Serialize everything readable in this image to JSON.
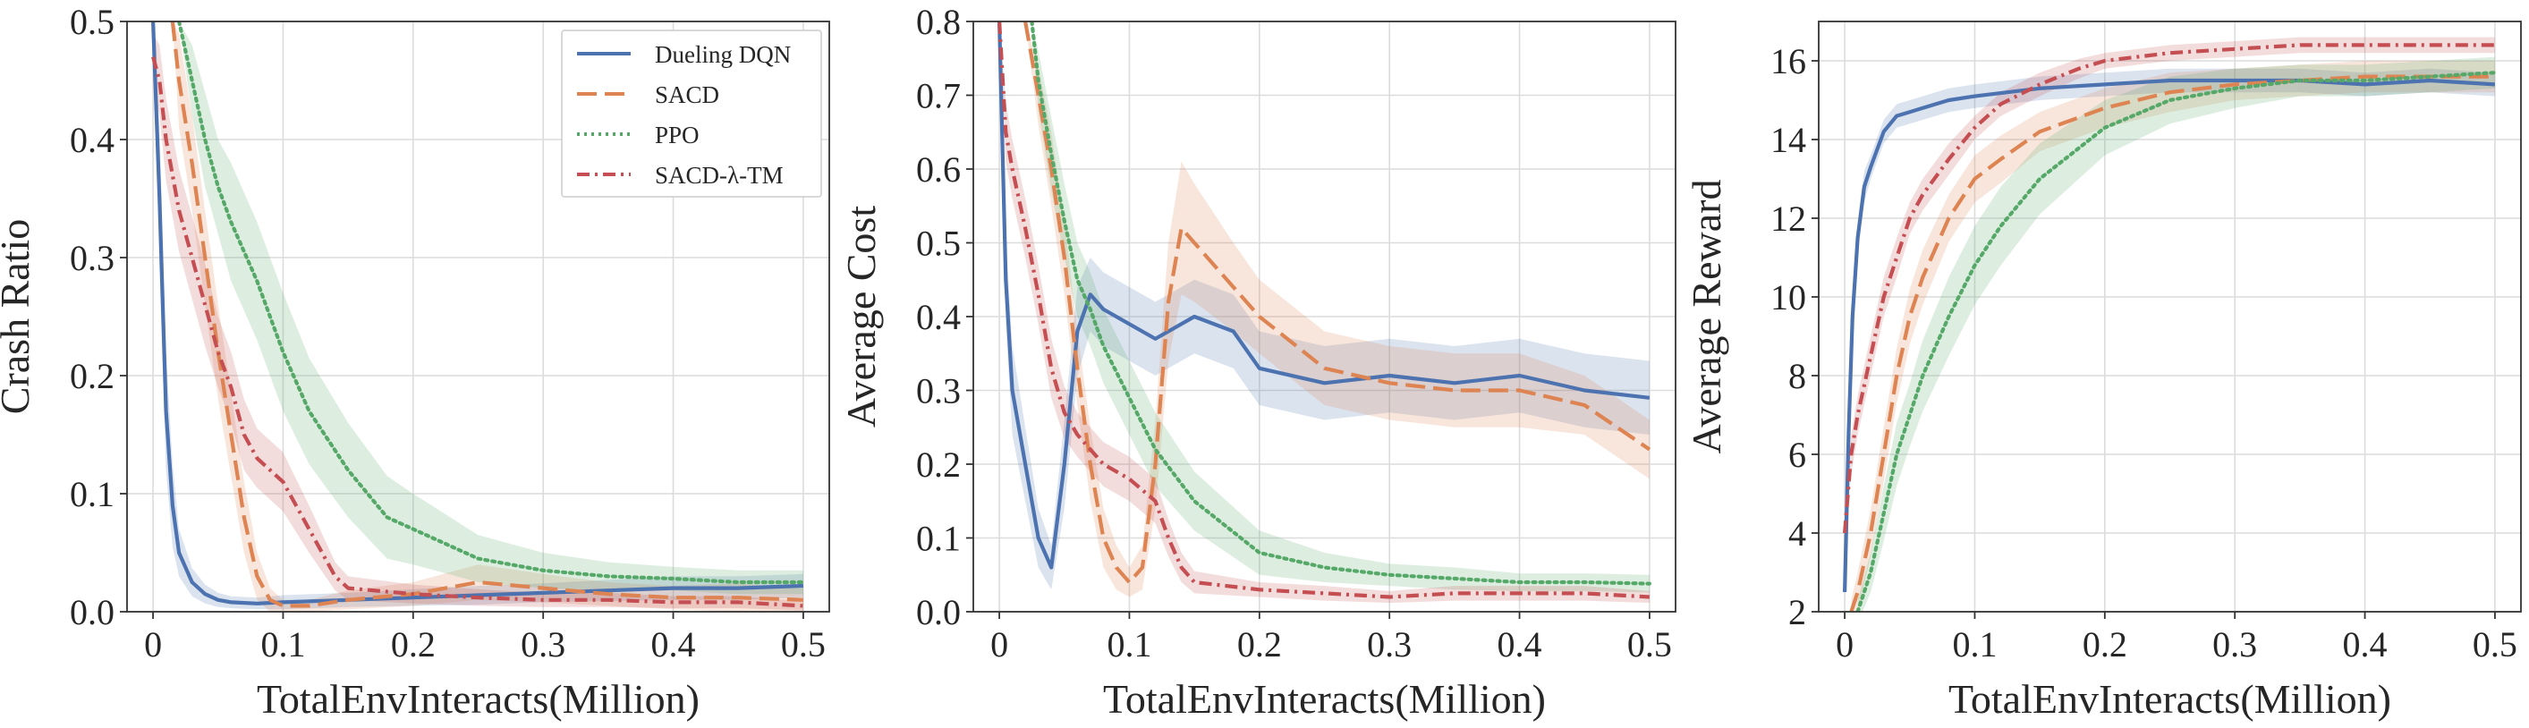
{
  "colors": {
    "dueling_dqn": "#4c72b0",
    "sacd": "#dd8452",
    "ppo": "#55a868",
    "sacd_tm": "#c44e52"
  },
  "chart_data": [
    {
      "type": "line",
      "title": "",
      "xlabel": "TotalEnvInteracts(Million)",
      "ylabel": "Crash Ratio",
      "xlim": [
        -0.02,
        0.52
      ],
      "ylim": [
        0.0,
        0.5
      ],
      "xticks": [
        0,
        0.1,
        0.2,
        0.3,
        0.4,
        0.5
      ],
      "xtick_labels": [
        "0",
        "0.1",
        "0.2",
        "0.3",
        "0.4",
        "0.5"
      ],
      "yticks": [
        0.0,
        0.1,
        0.2,
        0.3,
        0.4,
        0.5
      ],
      "ytick_labels": [
        "0.0",
        "0.1",
        "0.2",
        "0.3",
        "0.4",
        "0.5"
      ],
      "grid": true,
      "legend": "top-right",
      "series": [
        {
          "name": "Dueling DQN",
          "style": "solid",
          "color_key": "dueling_dqn",
          "x": [
            0,
            0.005,
            0.01,
            0.015,
            0.02,
            0.03,
            0.04,
            0.05,
            0.06,
            0.08,
            0.1,
            0.15,
            0.2,
            0.25,
            0.3,
            0.35,
            0.4,
            0.45,
            0.5
          ],
          "y": [
            0.5,
            0.35,
            0.17,
            0.09,
            0.05,
            0.025,
            0.015,
            0.01,
            0.008,
            0.007,
            0.008,
            0.01,
            0.012,
            0.014,
            0.016,
            0.018,
            0.02,
            0.02,
            0.022
          ],
          "band": [
            0.0,
            0.06,
            0.05,
            0.035,
            0.02,
            0.012,
            0.008,
            0.006,
            0.005,
            0.005,
            0.006,
            0.006,
            0.007,
            0.008,
            0.008,
            0.009,
            0.01,
            0.01,
            0.01
          ]
        },
        {
          "name": "SACD",
          "style": "dashed",
          "color_key": "sacd",
          "x": [
            0.015,
            0.02,
            0.03,
            0.04,
            0.05,
            0.06,
            0.07,
            0.08,
            0.09,
            0.1,
            0.12,
            0.15,
            0.2,
            0.25,
            0.3,
            0.35,
            0.4,
            0.45,
            0.5
          ],
          "y": [
            0.5,
            0.45,
            0.38,
            0.3,
            0.22,
            0.15,
            0.08,
            0.03,
            0.01,
            0.005,
            0.005,
            0.01,
            0.015,
            0.025,
            0.02,
            0.015,
            0.012,
            0.012,
            0.01
          ],
          "band": [
            0.0,
            0.04,
            0.04,
            0.04,
            0.04,
            0.035,
            0.03,
            0.02,
            0.01,
            0.005,
            0.005,
            0.008,
            0.01,
            0.015,
            0.012,
            0.01,
            0.01,
            0.012,
            0.01
          ]
        },
        {
          "name": "PPO",
          "style": "dotted",
          "color_key": "ppo",
          "x": [
            0.02,
            0.03,
            0.04,
            0.05,
            0.06,
            0.08,
            0.1,
            0.12,
            0.15,
            0.18,
            0.2,
            0.25,
            0.3,
            0.35,
            0.4,
            0.45,
            0.5
          ],
          "y": [
            0.5,
            0.45,
            0.4,
            0.36,
            0.33,
            0.28,
            0.22,
            0.17,
            0.12,
            0.08,
            0.07,
            0.045,
            0.035,
            0.03,
            0.028,
            0.025,
            0.025
          ],
          "band": [
            0.0,
            0.03,
            0.04,
            0.04,
            0.05,
            0.05,
            0.05,
            0.045,
            0.04,
            0.035,
            0.03,
            0.02,
            0.015,
            0.012,
            0.01,
            0.01,
            0.01
          ]
        },
        {
          "name": "SACD-λ-TM",
          "style": "dashdot",
          "color_key": "sacd_tm",
          "x": [
            0,
            0.005,
            0.01,
            0.02,
            0.03,
            0.04,
            0.05,
            0.06,
            0.07,
            0.08,
            0.1,
            0.12,
            0.14,
            0.15,
            0.2,
            0.25,
            0.3,
            0.35,
            0.4,
            0.45,
            0.5
          ],
          "y": [
            0.47,
            0.45,
            0.4,
            0.34,
            0.3,
            0.26,
            0.22,
            0.19,
            0.15,
            0.13,
            0.11,
            0.07,
            0.03,
            0.02,
            0.015,
            0.012,
            0.01,
            0.01,
            0.008,
            0.008,
            0.005
          ],
          "band": [
            0.02,
            0.03,
            0.035,
            0.035,
            0.035,
            0.035,
            0.03,
            0.03,
            0.03,
            0.025,
            0.025,
            0.02,
            0.012,
            0.01,
            0.008,
            0.007,
            0.006,
            0.006,
            0.005,
            0.005,
            0.004
          ]
        }
      ]
    },
    {
      "type": "line",
      "title": "",
      "xlabel": "TotalEnvInteracts(Million)",
      "ylabel": "Average Cost",
      "xlim": [
        -0.02,
        0.52
      ],
      "ylim": [
        0.0,
        0.8
      ],
      "xticks": [
        0,
        0.1,
        0.2,
        0.3,
        0.4,
        0.5
      ],
      "xtick_labels": [
        "0",
        "0.1",
        "0.2",
        "0.3",
        "0.4",
        "0.5"
      ],
      "yticks": [
        0.0,
        0.1,
        0.2,
        0.3,
        0.4,
        0.5,
        0.6,
        0.7,
        0.8
      ],
      "ytick_labels": [
        "0.0",
        "0.1",
        "0.2",
        "0.3",
        "0.4",
        "0.5",
        "0.6",
        "0.7",
        "0.8"
      ],
      "grid": true,
      "legend": "none",
      "series": [
        {
          "name": "Dueling DQN",
          "style": "solid",
          "color_key": "dueling_dqn",
          "x": [
            0,
            0.005,
            0.01,
            0.02,
            0.03,
            0.04,
            0.05,
            0.06,
            0.07,
            0.08,
            0.1,
            0.12,
            0.15,
            0.18,
            0.2,
            0.25,
            0.3,
            0.35,
            0.4,
            0.45,
            0.5
          ],
          "y": [
            0.8,
            0.45,
            0.3,
            0.2,
            0.1,
            0.06,
            0.2,
            0.38,
            0.43,
            0.41,
            0.39,
            0.37,
            0.4,
            0.38,
            0.33,
            0.31,
            0.32,
            0.31,
            0.32,
            0.3,
            0.29
          ],
          "band": [
            0.0,
            0.06,
            0.06,
            0.05,
            0.04,
            0.03,
            0.06,
            0.06,
            0.05,
            0.05,
            0.05,
            0.05,
            0.05,
            0.05,
            0.05,
            0.05,
            0.05,
            0.05,
            0.05,
            0.05,
            0.05
          ]
        },
        {
          "name": "SACD",
          "style": "dashed",
          "color_key": "sacd",
          "x": [
            0.02,
            0.03,
            0.04,
            0.05,
            0.06,
            0.07,
            0.08,
            0.09,
            0.1,
            0.11,
            0.12,
            0.13,
            0.14,
            0.15,
            0.18,
            0.2,
            0.25,
            0.3,
            0.35,
            0.4,
            0.45,
            0.5
          ],
          "y": [
            0.8,
            0.7,
            0.6,
            0.48,
            0.33,
            0.2,
            0.1,
            0.06,
            0.04,
            0.06,
            0.2,
            0.42,
            0.52,
            0.5,
            0.44,
            0.4,
            0.33,
            0.31,
            0.3,
            0.3,
            0.28,
            0.22
          ],
          "band": [
            0.0,
            0.04,
            0.05,
            0.05,
            0.05,
            0.05,
            0.04,
            0.03,
            0.02,
            0.03,
            0.06,
            0.08,
            0.09,
            0.08,
            0.06,
            0.05,
            0.05,
            0.05,
            0.05,
            0.05,
            0.04,
            0.04
          ]
        },
        {
          "name": "PPO",
          "style": "dotted",
          "color_key": "ppo",
          "x": [
            0.025,
            0.03,
            0.04,
            0.05,
            0.06,
            0.07,
            0.08,
            0.1,
            0.12,
            0.15,
            0.2,
            0.25,
            0.3,
            0.35,
            0.4,
            0.45,
            0.5
          ],
          "y": [
            0.8,
            0.72,
            0.62,
            0.53,
            0.45,
            0.41,
            0.36,
            0.29,
            0.22,
            0.15,
            0.08,
            0.06,
            0.05,
            0.045,
            0.04,
            0.04,
            0.038
          ],
          "band": [
            0.0,
            0.04,
            0.05,
            0.05,
            0.05,
            0.05,
            0.05,
            0.05,
            0.05,
            0.04,
            0.03,
            0.02,
            0.015,
            0.015,
            0.012,
            0.012,
            0.012
          ]
        },
        {
          "name": "SACD-λ-TM",
          "style": "dashdot",
          "color_key": "sacd_tm",
          "x": [
            0,
            0.005,
            0.01,
            0.02,
            0.03,
            0.04,
            0.05,
            0.06,
            0.07,
            0.08,
            0.1,
            0.12,
            0.13,
            0.14,
            0.15,
            0.2,
            0.25,
            0.3,
            0.35,
            0.4,
            0.45,
            0.5
          ],
          "y": [
            0.8,
            0.65,
            0.6,
            0.52,
            0.43,
            0.33,
            0.27,
            0.24,
            0.22,
            0.2,
            0.18,
            0.15,
            0.1,
            0.06,
            0.04,
            0.03,
            0.025,
            0.02,
            0.025,
            0.025,
            0.025,
            0.02
          ],
          "band": [
            0.0,
            0.04,
            0.04,
            0.04,
            0.04,
            0.04,
            0.035,
            0.03,
            0.03,
            0.03,
            0.03,
            0.03,
            0.025,
            0.02,
            0.015,
            0.01,
            0.01,
            0.008,
            0.01,
            0.01,
            0.01,
            0.008
          ]
        }
      ]
    },
    {
      "type": "line",
      "title": "",
      "xlabel": "TotalEnvInteracts(Million)",
      "ylabel": "Average Reward",
      "xlim": [
        -0.02,
        0.52
      ],
      "ylim": [
        2,
        17
      ],
      "xticks": [
        0,
        0.1,
        0.2,
        0.3,
        0.4,
        0.5
      ],
      "xtick_labels": [
        "0",
        "0.1",
        "0.2",
        "0.3",
        "0.4",
        "0.5"
      ],
      "yticks": [
        2,
        4,
        6,
        8,
        10,
        12,
        14,
        16
      ],
      "ytick_labels": [
        "2",
        "4",
        "6",
        "8",
        "10",
        "12",
        "14",
        "16"
      ],
      "grid": true,
      "legend": "none",
      "series": [
        {
          "name": "Dueling DQN",
          "style": "solid",
          "color_key": "dueling_dqn",
          "x": [
            0,
            0.003,
            0.006,
            0.01,
            0.015,
            0.02,
            0.03,
            0.04,
            0.05,
            0.06,
            0.08,
            0.1,
            0.15,
            0.2,
            0.25,
            0.3,
            0.35,
            0.4,
            0.45,
            0.5
          ],
          "y": [
            2.5,
            6.5,
            9.5,
            11.5,
            12.8,
            13.3,
            14.2,
            14.6,
            14.7,
            14.8,
            15.0,
            15.1,
            15.3,
            15.4,
            15.5,
            15.5,
            15.5,
            15.4,
            15.5,
            15.4
          ],
          "band": [
            0.3,
            0.4,
            0.4,
            0.4,
            0.4,
            0.3,
            0.3,
            0.3,
            0.3,
            0.3,
            0.3,
            0.3,
            0.3,
            0.3,
            0.3,
            0.3,
            0.3,
            0.3,
            0.3,
            0.3
          ]
        },
        {
          "name": "SACD",
          "style": "dashed",
          "color_key": "sacd",
          "x": [
            0.005,
            0.01,
            0.02,
            0.03,
            0.04,
            0.05,
            0.06,
            0.08,
            0.1,
            0.12,
            0.15,
            0.2,
            0.25,
            0.3,
            0.35,
            0.4,
            0.45,
            0.5
          ],
          "y": [
            2,
            2.5,
            4,
            6,
            8,
            9.5,
            10.5,
            12,
            13,
            13.5,
            14.2,
            14.8,
            15.2,
            15.4,
            15.5,
            15.6,
            15.6,
            15.6
          ],
          "band": [
            0.3,
            0.5,
            0.6,
            0.7,
            0.7,
            0.7,
            0.7,
            0.6,
            0.6,
            0.6,
            0.5,
            0.5,
            0.5,
            0.4,
            0.4,
            0.4,
            0.4,
            0.4
          ]
        },
        {
          "name": "PPO",
          "style": "dotted",
          "color_key": "ppo",
          "x": [
            0.01,
            0.02,
            0.03,
            0.04,
            0.05,
            0.06,
            0.08,
            0.1,
            0.12,
            0.15,
            0.2,
            0.25,
            0.3,
            0.35,
            0.4,
            0.45,
            0.5
          ],
          "y": [
            2,
            3,
            4.5,
            6,
            7,
            8,
            9.5,
            10.8,
            11.8,
            13,
            14.3,
            15.0,
            15.3,
            15.5,
            15.5,
            15.6,
            15.7
          ],
          "band": [
            0.3,
            0.5,
            0.7,
            0.8,
            0.8,
            0.9,
            1.0,
            1.0,
            1.0,
            0.9,
            0.7,
            0.6,
            0.5,
            0.4,
            0.4,
            0.4,
            0.4
          ]
        },
        {
          "name": "SACD-λ-TM",
          "style": "dashdot",
          "color_key": "sacd_tm",
          "x": [
            0,
            0.005,
            0.01,
            0.02,
            0.03,
            0.04,
            0.05,
            0.06,
            0.08,
            0.1,
            0.12,
            0.15,
            0.18,
            0.2,
            0.25,
            0.3,
            0.35,
            0.4,
            0.45,
            0.5
          ],
          "y": [
            4,
            6,
            7,
            8.5,
            10,
            11,
            12,
            12.6,
            13.5,
            14.3,
            14.9,
            15.4,
            15.8,
            16.0,
            16.2,
            16.3,
            16.4,
            16.4,
            16.4,
            16.4
          ],
          "band": [
            0.4,
            0.5,
            0.5,
            0.5,
            0.5,
            0.5,
            0.4,
            0.4,
            0.4,
            0.3,
            0.3,
            0.3,
            0.25,
            0.2,
            0.2,
            0.2,
            0.2,
            0.2,
            0.2,
            0.2
          ]
        }
      ]
    }
  ],
  "legend_items": [
    "Dueling DQN",
    "SACD",
    "PPO",
    "SACD-λ-TM"
  ]
}
